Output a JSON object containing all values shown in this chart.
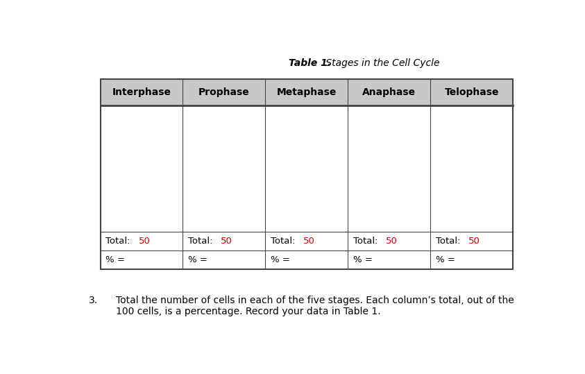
{
  "title_bold": "Table 1.",
  "title_italic": " Stages in the Cell Cycle",
  "columns": [
    "Interphase",
    "Prophase",
    "Metaphase",
    "Anaphase",
    "Telophase"
  ],
  "total_label": "Total:",
  "total_value": "50",
  "percent_label": "% =",
  "header_bg": "#c8c8c8",
  "header_text_color": "#000000",
  "total_value_color": "#cc0000",
  "body_bg": "#ffffff",
  "border_color": "#444444",
  "text_color": "#000000",
  "footnote_number": "3.",
  "footnote_text": "Total the number of cells in each of the five stages. Each column’s total, out of the\n100 cells, is a percentage. Record your data in Table 1.",
  "fig_width": 8.43,
  "fig_height": 5.39,
  "dpi": 100
}
